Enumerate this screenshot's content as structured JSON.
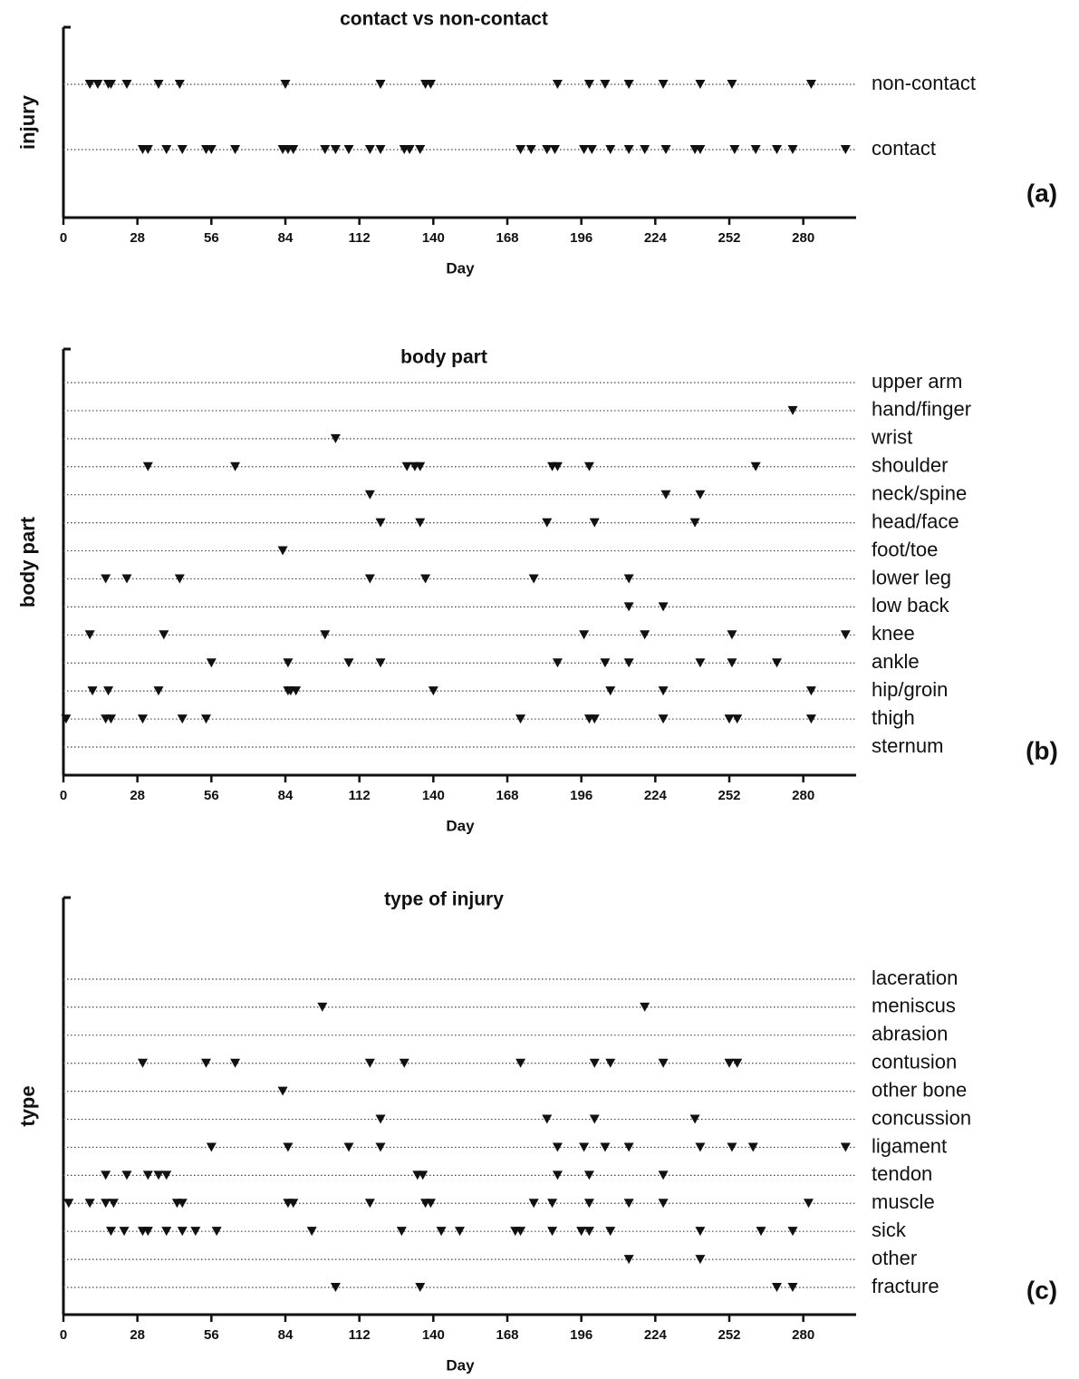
{
  "chart_data": [
    {
      "type": "event",
      "title": "contact vs non-contact",
      "xlabel": "Day",
      "ylabel": "injury",
      "panel_label": "(a)",
      "xlim": [
        0,
        300
      ],
      "xticks": [
        0,
        28,
        56,
        84,
        112,
        140,
        168,
        196,
        224,
        252,
        280
      ],
      "color": "#111111",
      "grid": true,
      "series": [
        {
          "name": "non-contact",
          "x": [
            10,
            13,
            17,
            18,
            24,
            36,
            44,
            84,
            120,
            137,
            139,
            187,
            199,
            205,
            214,
            227,
            241,
            253,
            283
          ]
        },
        {
          "name": "contact",
          "x": [
            30,
            32,
            39,
            45,
            54,
            56,
            65,
            83,
            85,
            87,
            99,
            103,
            108,
            116,
            120,
            129,
            131,
            135,
            173,
            177,
            183,
            186,
            197,
            200,
            207,
            214,
            220,
            228,
            239,
            241,
            254,
            262,
            270,
            276,
            296
          ]
        }
      ]
    },
    {
      "type": "event",
      "title": "body part",
      "xlabel": "Day",
      "ylabel": "body part",
      "panel_label": "(b)",
      "xlim": [
        0,
        300
      ],
      "xticks": [
        0,
        28,
        56,
        84,
        112,
        140,
        168,
        196,
        224,
        252,
        280
      ],
      "color": "#111111",
      "grid": true,
      "series": [
        {
          "name": "upper arm",
          "x": []
        },
        {
          "name": "hand/finger",
          "x": [
            276
          ]
        },
        {
          "name": "wrist",
          "x": [
            103
          ]
        },
        {
          "name": "shoulder",
          "x": [
            32,
            65,
            130,
            133,
            135,
            185,
            187,
            199,
            262
          ]
        },
        {
          "name": "neck/spine",
          "x": [
            116,
            228,
            241
          ]
        },
        {
          "name": "head/face",
          "x": [
            120,
            135,
            183,
            201,
            239
          ]
        },
        {
          "name": "foot/toe",
          "x": [
            83
          ]
        },
        {
          "name": "lower leg",
          "x": [
            16,
            24,
            44,
            116,
            137,
            178,
            214
          ]
        },
        {
          "name": "low back",
          "x": [
            214,
            227
          ]
        },
        {
          "name": "knee",
          "x": [
            10,
            38,
            99,
            197,
            220,
            253,
            296
          ]
        },
        {
          "name": "ankle",
          "x": [
            56,
            85,
            108,
            120,
            187,
            205,
            214,
            241,
            253,
            270
          ]
        },
        {
          "name": "hip/groin",
          "x": [
            11,
            17,
            36,
            85,
            86,
            88,
            140,
            207,
            227,
            283
          ]
        },
        {
          "name": "thigh",
          "x": [
            1,
            16,
            18,
            30,
            45,
            54,
            173,
            199,
            201,
            227,
            252,
            255,
            283
          ]
        },
        {
          "name": "sternum",
          "x": []
        }
      ]
    },
    {
      "type": "event",
      "title": "type of injury",
      "xlabel": "Day",
      "ylabel": "type",
      "panel_label": "(c)",
      "xlim": [
        0,
        300
      ],
      "xticks": [
        0,
        28,
        56,
        84,
        112,
        140,
        168,
        196,
        224,
        252,
        280
      ],
      "color": "#111111",
      "grid": true,
      "series": [
        {
          "name": "laceration",
          "x": []
        },
        {
          "name": "meniscus",
          "x": [
            98,
            220
          ]
        },
        {
          "name": "abrasion",
          "x": []
        },
        {
          "name": "contusion",
          "x": [
            30,
            54,
            65,
            116,
            129,
            173,
            201,
            207,
            227,
            252,
            255
          ]
        },
        {
          "name": "other bone",
          "x": [
            83
          ]
        },
        {
          "name": "concussion",
          "x": [
            120,
            183,
            201,
            239
          ]
        },
        {
          "name": "ligament",
          "x": [
            56,
            85,
            108,
            120,
            187,
            197,
            205,
            214,
            241,
            253,
            261,
            296
          ]
        },
        {
          "name": "tendon",
          "x": [
            16,
            24,
            32,
            36,
            39,
            134,
            136,
            187,
            199,
            227
          ]
        },
        {
          "name": "muscle",
          "x": [
            2,
            10,
            16,
            19,
            43,
            45,
            85,
            87,
            116,
            137,
            139,
            178,
            185,
            199,
            214,
            227,
            282
          ]
        },
        {
          "name": "sick",
          "x": [
            18,
            23,
            30,
            32,
            39,
            45,
            50,
            58,
            94,
            128,
            143,
            150,
            171,
            173,
            185,
            196,
            199,
            207,
            241,
            264,
            276
          ]
        },
        {
          "name": "other",
          "x": [
            214,
            241
          ]
        },
        {
          "name": "fracture",
          "x": [
            103,
            135,
            270,
            276
          ]
        }
      ]
    }
  ]
}
